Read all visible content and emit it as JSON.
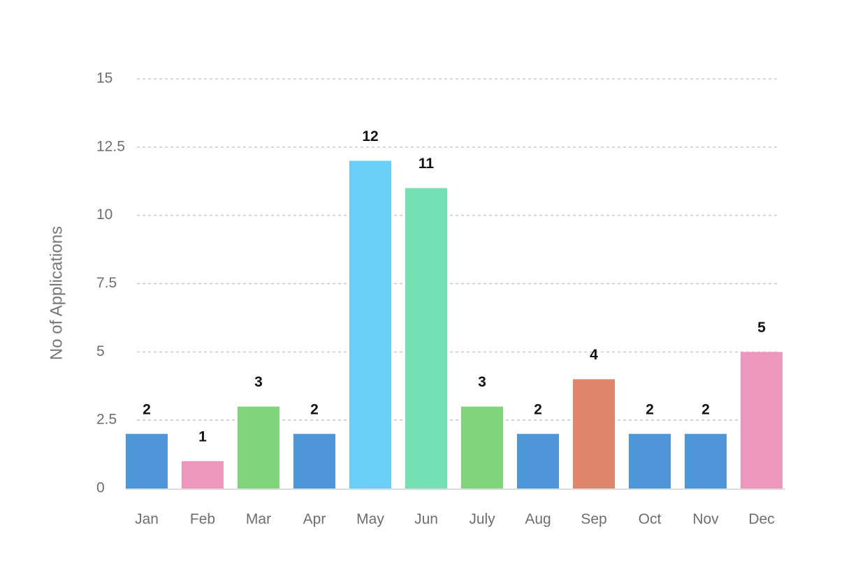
{
  "chart_data": {
    "type": "bar",
    "y_label": "No of Applications",
    "categories": [
      "Jan",
      "Feb",
      "Mar",
      "Apr",
      "May",
      "Jun",
      "July",
      "Aug",
      "Sep",
      "Oct",
      "Nov",
      "Dec"
    ],
    "values": [
      2,
      1,
      3,
      2,
      12,
      11,
      3,
      2,
      4,
      2,
      2,
      5
    ],
    "colors": [
      "#4f96d9",
      "#ee97bd",
      "#80d47b",
      "#4f96d9",
      "#69cff6",
      "#74e0b3",
      "#80d47b",
      "#4f96d9",
      "#e0866c",
      "#4f96d9",
      "#4f96d9",
      "#ee97bd"
    ],
    "ylim": [
      0,
      15
    ],
    "yticks": [
      0,
      2.5,
      5,
      7.5,
      10,
      12.5,
      15
    ],
    "grid": true
  }
}
